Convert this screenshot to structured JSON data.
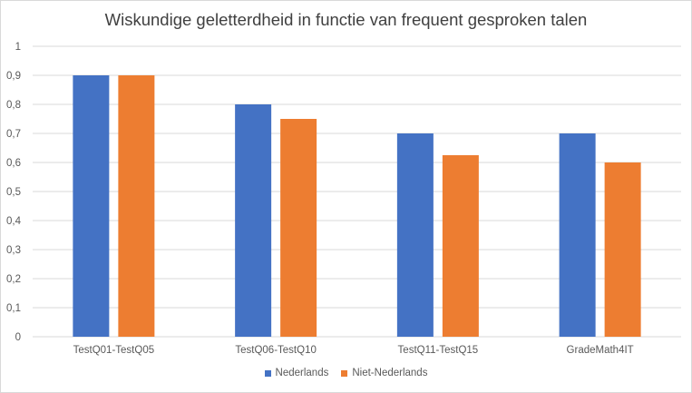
{
  "chart_data": {
    "type": "bar",
    "title": "Wiskundige geletterdheid in functie van frequent gesproken talen",
    "xlabel": "",
    "ylabel": "",
    "categories": [
      "TestQ01-TestQ05",
      "TestQ06-TestQ10",
      "TestQ11-TestQ15",
      "GradeMath4IT"
    ],
    "series": [
      {
        "name": "Nederlands",
        "color": "#4472C4",
        "values": [
          0.9,
          0.8,
          0.7,
          0.7
        ]
      },
      {
        "name": "Niet-Nederlands",
        "color": "#ED7D31",
        "values": [
          0.9,
          0.75,
          0.625,
          0.6
        ]
      }
    ],
    "ylim": [
      0,
      1
    ],
    "yticks": [
      "0",
      "0,1",
      "0,2",
      "0,3",
      "0,4",
      "0,5",
      "0,6",
      "0,7",
      "0,8",
      "0,9",
      "1"
    ],
    "grid": true,
    "legend_position": "bottom"
  }
}
